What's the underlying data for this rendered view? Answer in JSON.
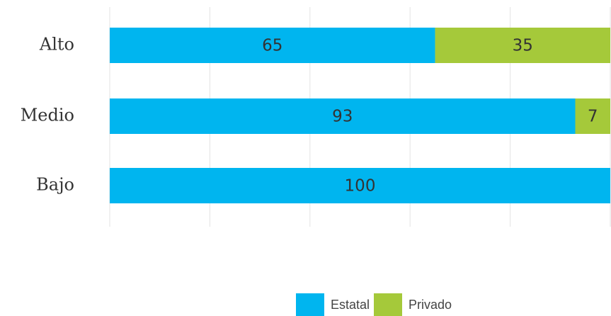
{
  "chart_data": {
    "type": "stacked_bar_horizontal",
    "categories": [
      "Alto",
      "Medio",
      "Bajo"
    ],
    "series": [
      {
        "name": "Estatal",
        "color": "#00b5ef",
        "values": [
          65,
          93,
          100
        ]
      },
      {
        "name": "Privado",
        "color": "#a5c93a",
        "values": [
          35,
          7,
          null
        ]
      }
    ],
    "xlim": [
      0,
      100
    ],
    "xticks": [
      0,
      20,
      40,
      60,
      80,
      100
    ],
    "grid": true,
    "legend": "bottom"
  }
}
